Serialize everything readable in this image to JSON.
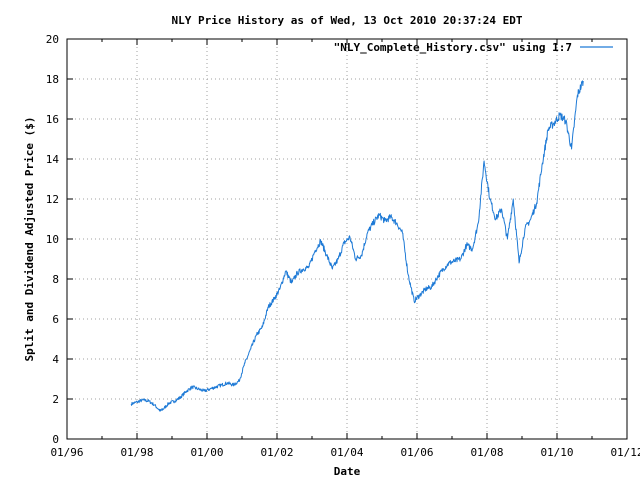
{
  "chart_data": {
    "type": "line",
    "title": "NLY Price History as of Wed, 13 Oct 2010 20:37:24 EDT",
    "xlabel": "Date",
    "ylabel": "Split and Dividend Adjusted Price ($)",
    "x_tick_labels": [
      "01/96",
      "01/98",
      "01/00",
      "01/02",
      "01/04",
      "01/06",
      "01/08",
      "01/10",
      "01/12"
    ],
    "xlim": [
      "1996-01",
      "2012-01"
    ],
    "ylim": [
      0,
      20
    ],
    "y_ticks": [
      0,
      2,
      4,
      6,
      8,
      10,
      12,
      14,
      16,
      18,
      20
    ],
    "grid": true,
    "legend_position": "top-right",
    "series": [
      {
        "name": "\"NLY_Complete_History.csv\" using 1:7",
        "color": "#1e7ad6",
        "x": [
          "1997-11",
          "1998-01",
          "1998-03",
          "1998-05",
          "1998-07",
          "1998-09",
          "1998-10",
          "1998-12",
          "1999-02",
          "1999-04",
          "1999-06",
          "1999-08",
          "1999-10",
          "1999-12",
          "2000-02",
          "2000-04",
          "2000-06",
          "2000-08",
          "2000-10",
          "2000-12",
          "2001-02",
          "2001-04",
          "2001-06",
          "2001-08",
          "2001-10",
          "2001-12",
          "2002-02",
          "2002-04",
          "2002-06",
          "2002-08",
          "2002-10",
          "2002-12",
          "2003-02",
          "2003-04",
          "2003-06",
          "2003-08",
          "2003-10",
          "2003-12",
          "2004-02",
          "2004-04",
          "2004-06",
          "2004-08",
          "2004-10",
          "2004-12",
          "2005-02",
          "2005-04",
          "2005-06",
          "2005-08",
          "2005-10",
          "2005-12",
          "2006-02",
          "2006-04",
          "2006-06",
          "2006-08",
          "2006-10",
          "2006-12",
          "2007-02",
          "2007-04",
          "2007-06",
          "2007-08",
          "2007-10",
          "2007-12",
          "2008-02",
          "2008-04",
          "2008-06",
          "2008-08",
          "2008-10",
          "2008-12",
          "2009-02",
          "2009-04",
          "2009-06",
          "2009-08",
          "2009-10",
          "2009-12",
          "2010-02",
          "2010-04",
          "2010-06",
          "2010-08",
          "2010-10"
        ],
        "y": [
          1.75,
          1.85,
          1.95,
          1.9,
          1.7,
          1.4,
          1.5,
          1.8,
          1.9,
          2.1,
          2.4,
          2.6,
          2.5,
          2.4,
          2.5,
          2.6,
          2.7,
          2.8,
          2.7,
          2.9,
          3.8,
          4.5,
          5.2,
          5.6,
          6.6,
          7.0,
          7.5,
          8.4,
          7.8,
          8.3,
          8.5,
          8.6,
          9.4,
          9.9,
          9.2,
          8.5,
          9.0,
          9.8,
          10.1,
          9.0,
          9.2,
          10.3,
          10.8,
          11.2,
          10.9,
          11.1,
          10.8,
          10.3,
          8.2,
          6.9,
          7.2,
          7.5,
          7.6,
          8.1,
          8.5,
          8.8,
          8.9,
          9.0,
          9.7,
          9.5,
          10.8,
          13.9,
          12.0,
          11.0,
          11.5,
          10.0,
          12.0,
          8.8,
          10.5,
          11.0,
          11.8,
          13.8,
          15.5,
          15.8,
          16.2,
          15.9,
          14.5,
          17.2,
          17.9
        ]
      }
    ]
  }
}
